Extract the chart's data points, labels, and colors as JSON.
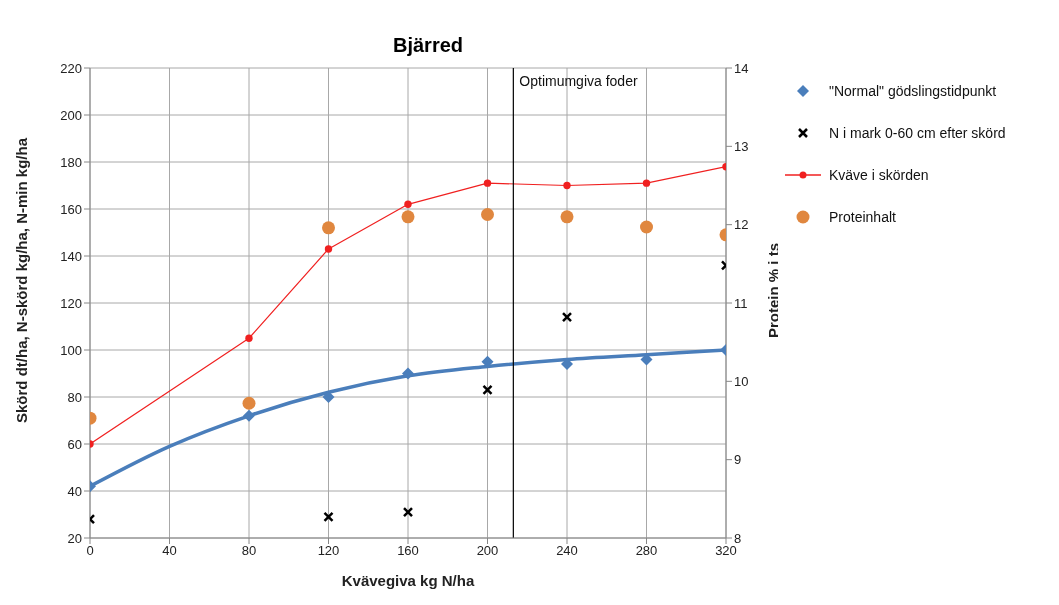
{
  "chart_data": {
    "type": "scatter",
    "title": "Bjärred",
    "xlabel": "Kvävegiva kg N/ha",
    "ylabel": "Skörd dt/ha, N-skörd kg/ha, N-min kg/ha",
    "y2label": "Protein % i ts",
    "x": [
      0,
      80,
      120,
      160,
      200,
      240,
      280,
      320
    ],
    "series": [
      {
        "name": "\"Normal\" gödslingstidpunkt",
        "marker": "diamond",
        "color": "#4a7ebb",
        "values": [
          42,
          72,
          80,
          90,
          95,
          94,
          96,
          100
        ]
      },
      {
        "name": "N i mark 0-60 cm efter skörd",
        "marker": "cross",
        "color": "#000000",
        "values": [
          28,
          null,
          29,
          31,
          83,
          114,
          null,
          136
        ]
      },
      {
        "name": "Kväve i skörden",
        "type": "line",
        "marker": "circle",
        "color": "#f02020",
        "values": [
          60,
          105,
          143,
          162,
          171,
          170,
          171,
          178
        ]
      },
      {
        "name": "Proteinhalt",
        "marker": "circle",
        "color": "#e0873f",
        "axis": "y2",
        "values": [
          9.53,
          9.72,
          11.96,
          12.1,
          12.13,
          12.1,
          11.97,
          11.87
        ]
      },
      {
        "type": "line",
        "marker": "none",
        "color": "#4a7ebb",
        "x": [
          0,
          40,
          80,
          120,
          160,
          200,
          240,
          280,
          320
        ],
        "values": [
          42,
          59,
          72,
          82,
          89,
          93,
          96,
          98,
          100
        ]
      }
    ],
    "ref_lines": [
      {
        "axis": "x",
        "value": 213,
        "label": "Optimumgiva foder",
        "color": "#000000"
      }
    ],
    "xlim": [
      0,
      320
    ],
    "xticks": [
      0,
      40,
      80,
      120,
      160,
      200,
      240,
      280,
      320
    ],
    "ylim": [
      20,
      220
    ],
    "yticks": [
      20,
      40,
      60,
      80,
      100,
      120,
      140,
      160,
      180,
      200,
      220
    ],
    "y2lim": [
      8,
      14
    ],
    "y2ticks": [
      8,
      9,
      10,
      11,
      12,
      13,
      14
    ],
    "grid": true,
    "legend": "right"
  }
}
